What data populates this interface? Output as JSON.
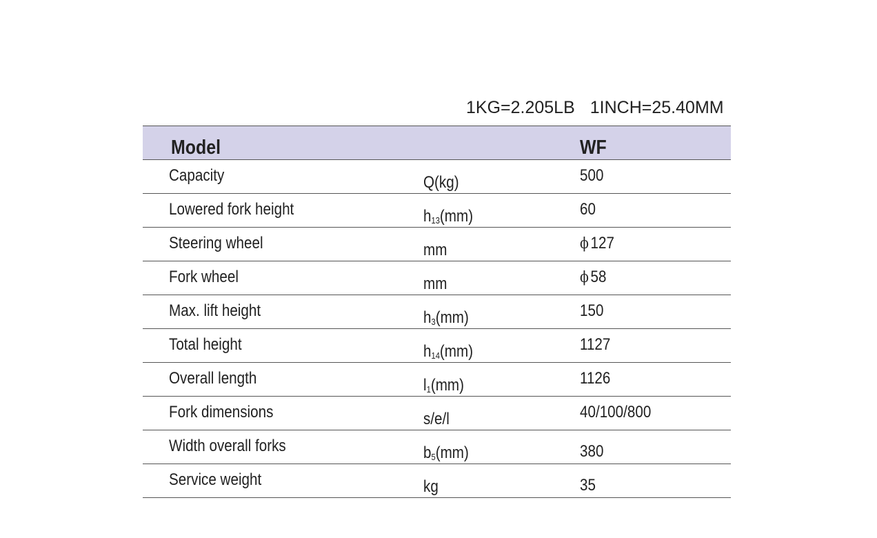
{
  "conversions": [
    "1KG=2.205LB",
    "1INCH=25.40MM"
  ],
  "header": {
    "model_label": "Model",
    "model_value": "WF"
  },
  "rows": [
    {
      "label": "Capacity",
      "unit": "Q(kg)",
      "value": "500"
    },
    {
      "label": "Lowered fork height",
      "unit_prefix": "h",
      "unit_sub": "13",
      "unit_suffix": "(mm)",
      "value": "60"
    },
    {
      "label": "Steering wheel",
      "unit": "mm",
      "value_symbol": "ϕ",
      "value": "127"
    },
    {
      "label": "Fork wheel",
      "unit": "mm",
      "value_symbol": "ϕ",
      "value": "58"
    },
    {
      "label": "Max. lift height",
      "unit_prefix": "h",
      "unit_sub": "3",
      "unit_suffix": "(mm)",
      "value": "150"
    },
    {
      "label": "Total height",
      "unit_prefix": "h",
      "unit_sub": "14",
      "unit_suffix": "(mm)",
      "value": "1127"
    },
    {
      "label": "Overall length",
      "unit_prefix": "l",
      "unit_sub": "1",
      "unit_suffix": "(mm)",
      "value": "1126"
    },
    {
      "label": "Fork dimensions",
      "unit": "s/e/l",
      "value": "40/100/800"
    },
    {
      "label": "Width overall forks",
      "unit_prefix": "b",
      "unit_sub": "5",
      "unit_suffix": "(mm)",
      "value": "380"
    },
    {
      "label": "Service weight",
      "unit": "kg",
      "value": "35"
    }
  ]
}
